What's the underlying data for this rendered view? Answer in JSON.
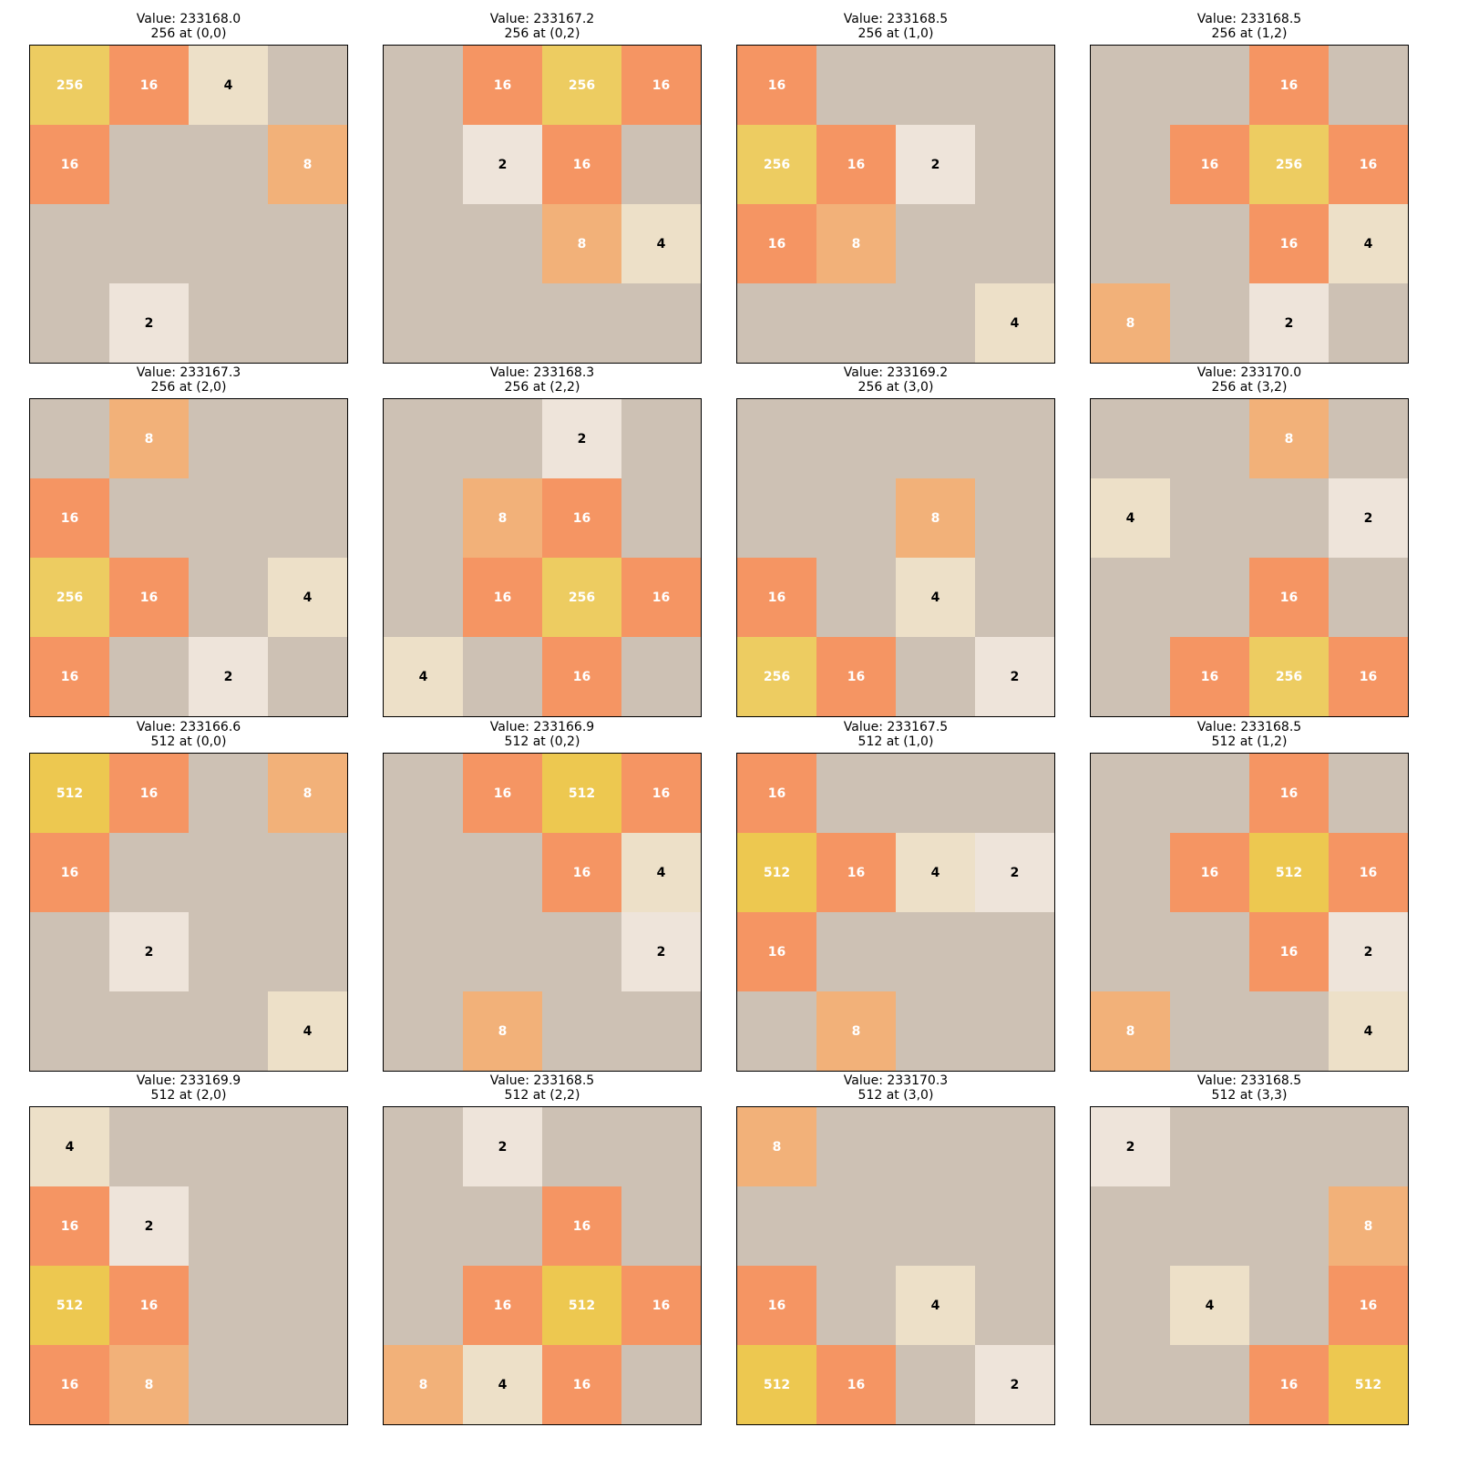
{
  "tile_colors": {
    "0": "#cdc1b4",
    "2": "#eee4da",
    "4": "#ede0c8",
    "8": "#f2b179",
    "16": "#f59563",
    "256": "#edcc61",
    "512": "#edc850"
  },
  "panels": [
    {
      "value_label": "Value: 233168.0",
      "pos_label": "256 at (0,0)",
      "grid": [
        [
          256,
          16,
          4,
          0
        ],
        [
          16,
          0,
          0,
          8
        ],
        [
          0,
          0,
          0,
          0
        ],
        [
          0,
          2,
          0,
          0
        ]
      ]
    },
    {
      "value_label": "Value: 233167.2",
      "pos_label": "256 at (0,2)",
      "grid": [
        [
          0,
          16,
          256,
          16
        ],
        [
          0,
          2,
          16,
          0
        ],
        [
          0,
          0,
          8,
          4
        ],
        [
          0,
          0,
          0,
          0
        ]
      ]
    },
    {
      "value_label": "Value: 233168.5",
      "pos_label": "256 at (1,0)",
      "grid": [
        [
          16,
          0,
          0,
          0
        ],
        [
          256,
          16,
          2,
          0
        ],
        [
          16,
          8,
          0,
          0
        ],
        [
          0,
          0,
          0,
          4
        ]
      ]
    },
    {
      "value_label": "Value: 233168.5",
      "pos_label": "256 at (1,2)",
      "grid": [
        [
          0,
          0,
          16,
          0
        ],
        [
          0,
          16,
          256,
          16
        ],
        [
          0,
          0,
          16,
          4
        ],
        [
          8,
          0,
          2,
          0
        ]
      ]
    },
    {
      "value_label": "Value: 233167.3",
      "pos_label": "256 at (2,0)",
      "grid": [
        [
          0,
          8,
          0,
          0
        ],
        [
          16,
          0,
          0,
          0
        ],
        [
          256,
          16,
          0,
          4
        ],
        [
          16,
          0,
          2,
          0
        ]
      ]
    },
    {
      "value_label": "Value: 233168.3",
      "pos_label": "256 at (2,2)",
      "grid": [
        [
          0,
          0,
          2,
          0
        ],
        [
          0,
          8,
          16,
          0
        ],
        [
          0,
          16,
          256,
          16
        ],
        [
          4,
          0,
          16,
          0
        ]
      ]
    },
    {
      "value_label": "Value: 233169.2",
      "pos_label": "256 at (3,0)",
      "grid": [
        [
          0,
          0,
          0,
          0
        ],
        [
          0,
          0,
          8,
          0
        ],
        [
          16,
          0,
          4,
          0
        ],
        [
          256,
          16,
          0,
          2
        ]
      ]
    },
    {
      "value_label": "Value: 233170.0",
      "pos_label": "256 at (3,2)",
      "grid": [
        [
          0,
          0,
          8,
          0
        ],
        [
          4,
          0,
          0,
          2
        ],
        [
          0,
          0,
          16,
          0
        ],
        [
          0,
          16,
          256,
          16
        ]
      ]
    },
    {
      "value_label": "Value: 233166.6",
      "pos_label": "512 at (0,0)",
      "grid": [
        [
          512,
          16,
          0,
          8
        ],
        [
          16,
          0,
          0,
          0
        ],
        [
          0,
          2,
          0,
          0
        ],
        [
          0,
          0,
          0,
          4
        ]
      ]
    },
    {
      "value_label": "Value: 233166.9",
      "pos_label": "512 at (0,2)",
      "grid": [
        [
          0,
          16,
          512,
          16
        ],
        [
          0,
          0,
          16,
          4
        ],
        [
          0,
          0,
          0,
          2
        ],
        [
          0,
          8,
          0,
          0
        ]
      ]
    },
    {
      "value_label": "Value: 233167.5",
      "pos_label": "512 at (1,0)",
      "grid": [
        [
          16,
          0,
          0,
          0
        ],
        [
          512,
          16,
          4,
          2
        ],
        [
          16,
          0,
          0,
          0
        ],
        [
          0,
          8,
          0,
          0
        ]
      ]
    },
    {
      "value_label": "Value: 233168.5",
      "pos_label": "512 at (1,2)",
      "grid": [
        [
          0,
          0,
          16,
          0
        ],
        [
          0,
          16,
          512,
          16
        ],
        [
          0,
          0,
          16,
          2
        ],
        [
          8,
          0,
          0,
          4
        ]
      ]
    },
    {
      "value_label": "Value: 233169.9",
      "pos_label": "512 at (2,0)",
      "grid": [
        [
          4,
          0,
          0,
          0
        ],
        [
          16,
          2,
          0,
          0
        ],
        [
          512,
          16,
          0,
          0
        ],
        [
          16,
          8,
          0,
          0
        ]
      ]
    },
    {
      "value_label": "Value: 233168.5",
      "pos_label": "512 at (2,2)",
      "grid": [
        [
          0,
          2,
          0,
          0
        ],
        [
          0,
          0,
          16,
          0
        ],
        [
          0,
          16,
          512,
          16
        ],
        [
          8,
          4,
          16,
          0
        ]
      ]
    },
    {
      "value_label": "Value: 233170.3",
      "pos_label": "512 at (3,0)",
      "grid": [
        [
          8,
          0,
          0,
          0
        ],
        [
          0,
          0,
          0,
          0
        ],
        [
          16,
          0,
          4,
          0
        ],
        [
          512,
          16,
          0,
          2
        ]
      ]
    },
    {
      "value_label": "Value: 233168.5",
      "pos_label": "512 at (3,3)",
      "grid": [
        [
          2,
          0,
          0,
          0
        ],
        [
          0,
          0,
          0,
          8
        ],
        [
          0,
          4,
          0,
          16
        ],
        [
          0,
          0,
          16,
          512
        ]
      ]
    }
  ]
}
